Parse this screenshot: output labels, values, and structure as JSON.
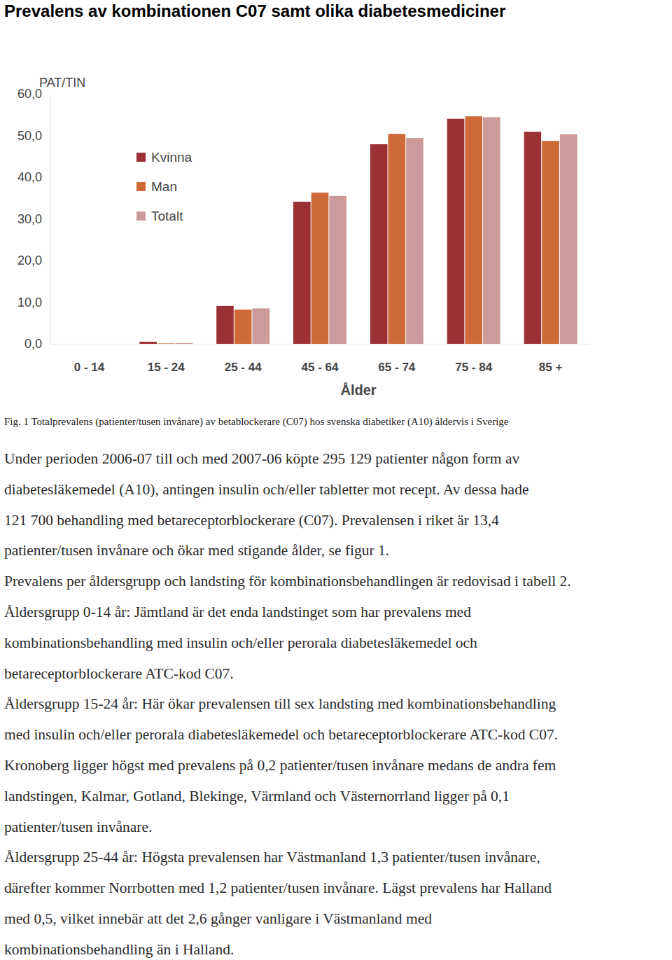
{
  "title": "Prevalens av kombinationen C07 samt olika diabetesmediciner",
  "chart_data": {
    "type": "bar",
    "y_label": "PAT/TIN",
    "x_label": "Ålder",
    "categories": [
      "0 - 14",
      "15 - 24",
      "25 - 44",
      "45 - 64",
      "65 - 74",
      "75 - 84",
      "85 +"
    ],
    "series": [
      {
        "name": "Kvinna",
        "color": "#9b3135",
        "values": [
          0,
          0.5,
          9.1,
          34.1,
          47.9,
          54.0,
          50.9
        ]
      },
      {
        "name": "Man",
        "color": "#cd6a37",
        "values": [
          0,
          0.1,
          8.2,
          36.3,
          50.4,
          54.6,
          48.7
        ]
      },
      {
        "name": "Totalt",
        "color": "#cc9a9a",
        "values": [
          0,
          0.2,
          8.5,
          35.5,
          49.4,
          54.4,
          50.3
        ]
      }
    ],
    "ylim": [
      0,
      60
    ],
    "yticks": [
      {
        "value": 0,
        "label": "0,0"
      },
      {
        "value": 10,
        "label": "10,0"
      },
      {
        "value": 20,
        "label": "20,0"
      },
      {
        "value": 30,
        "label": "30,0"
      },
      {
        "value": 40,
        "label": "40,0"
      },
      {
        "value": 50,
        "label": "50,0"
      },
      {
        "value": 60,
        "label": "60,0"
      }
    ],
    "grid": false,
    "legend": "top-left"
  },
  "caption": "Fig. 1 Totalprevalens (patienter/tusen invånare) av betablockerare (C07) hos svenska diabetiker (A10) åldervis i Sverige",
  "paragraphs": [
    [
      "Under perioden 2006-07 till och med 2007-06 köpte 295 129 patienter någon form av",
      "diabetesläkemedel (A10), antingen insulin och/eller tabletter mot recept. Av dessa hade",
      "121 700 behandling med betareceptorblockerare (C07). Prevalensen i riket är 13,4",
      "patienter/tusen invånare och ökar med stigande ålder, se figur 1."
    ],
    [
      "Prevalens per åldersgrupp och landsting för kombinationsbehandlingen är redovisad i tabell 2."
    ],
    [
      "Åldersgrupp 0-14 år: Jämtland är det enda landstinget som har prevalens med",
      "kombinationsbehandling med insulin och/eller perorala diabetesläkemedel och",
      "betareceptorblockerare ATC-kod C07."
    ],
    [
      "Åldersgrupp 15-24 år: Här ökar prevalensen till sex landsting med kombinationsbehandling",
      "med insulin och/eller perorala diabetesläkemedel och betareceptorblockerare ATC-kod C07.",
      "Kronoberg ligger högst med prevalens på 0,2 patienter/tusen invånare medans de andra fem",
      "landstingen, Kalmar, Gotland, Blekinge, Värmland och Västernorrland ligger på 0,1",
      "patienter/tusen invånare."
    ],
    [
      "Åldersgrupp 25-44 år: Högsta prevalensen har Västmanland 1,3 patienter/tusen invånare,",
      "därefter kommer Norrbotten med 1,2 patienter/tusen invånare. Lägst prevalens har Halland",
      "med 0,5, vilket innebär att det 2,6 gånger vanligare i Västmanland med",
      "kombinationsbehandling än i Halland."
    ]
  ]
}
